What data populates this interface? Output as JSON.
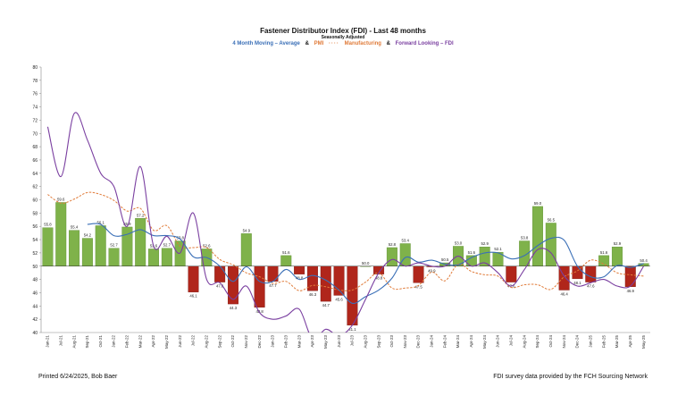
{
  "chart_data": {
    "type": "bar",
    "title": "Fastener Distributor Index (FDI) - Last 48 months",
    "subtitle": "Seasonally Adjusted",
    "legend": [
      {
        "label": "4 Month Moving – Average",
        "color": "#3a6fb7"
      },
      {
        "label": "PMI",
        "color": "#e07b39"
      },
      {
        "label": "Manufacturing",
        "color": "#e07b39"
      },
      {
        "label": "Forward Looking – FDI",
        "color": "#7a3fa0"
      }
    ],
    "legend_separator": "&",
    "ylim": [
      40,
      80
    ],
    "yticks": [
      40,
      42,
      44,
      46,
      48,
      50,
      52,
      54,
      56,
      58,
      60,
      62,
      64,
      66,
      68,
      70,
      72,
      74,
      76,
      78,
      80
    ],
    "baseline": 50,
    "grid": false,
    "categories": [
      "Jan-21",
      "Jul-21",
      "Aug-21",
      "Sep-21",
      "Oct-21",
      "Jan-22",
      "Feb-22",
      "Mar-22",
      "Apr-22",
      "May-22",
      "Jun-22",
      "Jul-22",
      "Aug-22",
      "Sep-22",
      "Oct-22",
      "Nov-22",
      "Dec-22",
      "Jan-23",
      "Feb-23",
      "Mar-23",
      "Apr-23",
      "May-23",
      "Jun-23",
      "Jul-23",
      "Aug-23",
      "Sep-23",
      "Oct-23",
      "Nov-23",
      "Dec-23",
      "Jan-24",
      "Feb-24",
      "Mar-24",
      "Apr-24",
      "May-24",
      "Jun-24",
      "Jul-24",
      "Aug-24",
      "Sep-24",
      "Oct-24",
      "Nov-24",
      "Dec-24",
      "Jan-25",
      "Feb-25",
      "Mar-25",
      "Apr-25",
      "May-25"
    ],
    "series": [
      {
        "name": "FDI",
        "kind": "bar",
        "values": [
          55.8,
          59.6,
          55.4,
          54.2,
          56.1,
          52.7,
          55.9,
          57.2,
          52.6,
          52.7,
          53.8,
          46.1,
          52.6,
          47.6,
          44.3,
          54.9,
          43.8,
          47.7,
          51.6,
          48.8,
          46.3,
          44.7,
          45.6,
          41.1,
          50.0,
          48.8,
          52.8,
          53.4,
          47.5,
          49.9,
          50.5,
          53.0,
          51.6,
          52.9,
          52.1,
          47.6,
          53.8,
          59.0,
          56.5,
          46.4,
          48.1,
          47.6,
          51.6,
          52.9,
          46.9,
          50.4
        ]
      },
      {
        "name": "4 Month Moving – Average",
        "kind": "line",
        "values": [
          null,
          null,
          null,
          56.3,
          56.3,
          54.6,
          54.8,
          55.5,
          54.6,
          54.6,
          54.1,
          51.4,
          51.3,
          50.0,
          47.7,
          49.9,
          47.7,
          47.7,
          49.5,
          48.0,
          48.6,
          47.9,
          46.4,
          44.4,
          45.4,
          46.4,
          48.2,
          51.3,
          50.6,
          50.9,
          50.3,
          50.2,
          51.3,
          52.0,
          52.0,
          51.1,
          51.6,
          53.1,
          54.2,
          53.9,
          50.0,
          48.4,
          48.4,
          50.1,
          49.8,
          50.4
        ]
      },
      {
        "name": "PMI Manufacturing",
        "kind": "line",
        "values": [
          60.8,
          59.5,
          60.1,
          61.1,
          60.8,
          59.9,
          58.3,
          58.7,
          55.4,
          56.1,
          53.0,
          52.8,
          52.8,
          51.0,
          50.2,
          49.0,
          48.4,
          47.4,
          47.7,
          46.3,
          47.1,
          46.9,
          46.4,
          46.4,
          47.6,
          49.0,
          46.7,
          46.7,
          47.1,
          49.1,
          47.8,
          50.3,
          49.2,
          48.7,
          48.5,
          46.8,
          47.2,
          47.2,
          46.5,
          48.4,
          49.3,
          50.9,
          50.3,
          49.0,
          48.7,
          48.5
        ]
      },
      {
        "name": "Forward Looking – FDI",
        "kind": "line",
        "values": [
          71.0,
          63.5,
          73.0,
          69.0,
          64.0,
          62.0,
          56.0,
          65.0,
          53.0,
          54.5,
          52.0,
          58.0,
          48.0,
          47.5,
          45.0,
          47.0,
          43.0,
          42.0,
          42.5,
          43.5,
          39.0,
          40.5,
          39.5,
          41.1,
          45.0,
          49.0,
          51.0,
          50.0,
          50.5,
          50.0,
          50.0,
          51.5,
          50.0,
          50.5,
          49.0,
          47.0,
          49.5,
          52.5,
          52.0,
          48.5,
          47.0,
          47.5,
          48.0,
          47.0,
          47.0,
          50.0
        ]
      }
    ]
  },
  "footer": {
    "left": "Printed 6/24/2025, Bob Baer",
    "right": "FDI survey data provided by the FCH Sourcing Network"
  }
}
